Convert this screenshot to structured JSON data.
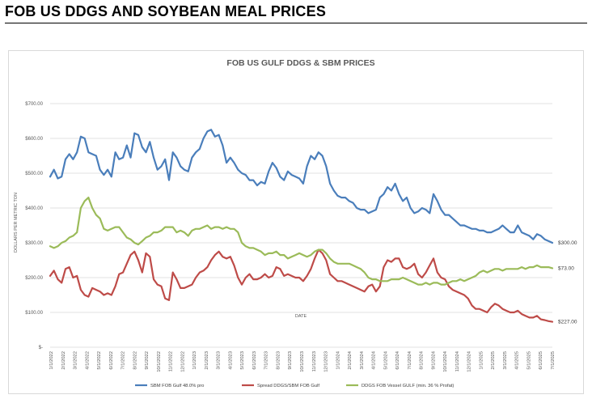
{
  "header": {
    "title": "FOB US DDGS AND SOYBEAN MEAL PRICES"
  },
  "chart_data": {
    "type": "line",
    "title": "FOB US GULF DDGS & SBM PRICES",
    "xlabel": "DATE",
    "ylabel": "DOLLARS PER METRIC TON",
    "ylim": [
      0,
      700
    ],
    "y_ticks": [
      "$-",
      "$100.00",
      "$200.00",
      "$300.00",
      "$400.00",
      "$500.00",
      "$600.00",
      "$700.00"
    ],
    "x_ticks": [
      "1/1/2022",
      "2/1/2022",
      "3/1/2022",
      "4/1/2022",
      "5/1/2022",
      "6/1/2022",
      "7/1/2022",
      "8/1/2022",
      "9/1/2022",
      "10/1/2022",
      "11/1/2022",
      "12/1/2022",
      "1/1/2023",
      "2/1/2023",
      "3/1/2023",
      "4/1/2023",
      "5/1/2023",
      "6/1/2023",
      "7/1/2023",
      "8/1/2023",
      "9/1/2023",
      "10/1/2023",
      "11/1/2023",
      "12/1/2023",
      "1/1/2024",
      "2/1/2024",
      "3/1/2024",
      "4/1/2024",
      "5/1/2024",
      "6/1/2024",
      "7/1/2024",
      "8/1/2024",
      "9/1/2024",
      "10/1/2024",
      "11/1/2024",
      "12/1/2024",
      "1/1/2025",
      "2/1/2025",
      "3/1/2025",
      "4/1/2025",
      "5/1/2025",
      "6/1/2025",
      "7/1/2025"
    ],
    "grid": true,
    "legend_position": "bottom",
    "end_labels": [
      "$300.00",
      "$227.00",
      "$73.00"
    ],
    "series": [
      {
        "name": "SBM FOB Gulf 48.0% pro",
        "color": "#4a7ebb",
        "values": [
          490,
          510,
          485,
          490,
          540,
          555,
          540,
          560,
          605,
          600,
          560,
          555,
          550,
          510,
          495,
          510,
          490,
          560,
          540,
          545,
          580,
          545,
          615,
          610,
          575,
          560,
          590,
          545,
          510,
          520,
          540,
          480,
          560,
          545,
          520,
          510,
          505,
          545,
          560,
          570,
          600,
          620,
          625,
          605,
          610,
          580,
          530,
          545,
          530,
          510,
          500,
          495,
          480,
          480,
          465,
          475,
          470,
          505,
          530,
          515,
          490,
          480,
          505,
          495,
          490,
          485,
          470,
          520,
          550,
          540,
          560,
          550,
          520,
          470,
          450,
          435,
          430,
          430,
          420,
          415,
          400,
          395,
          395,
          385,
          390,
          395,
          430,
          440,
          460,
          450,
          470,
          440,
          420,
          430,
          400,
          385,
          390,
          400,
          395,
          385,
          440,
          420,
          395,
          380,
          380,
          370,
          360,
          350,
          350,
          345,
          340,
          340,
          335,
          335,
          330,
          330,
          335,
          340,
          350,
          340,
          330,
          330,
          350,
          330,
          325,
          320,
          310,
          325,
          320,
          310,
          305,
          300
        ]
      },
      {
        "name": "Spread DDGS/SBM FOB Gulf",
        "color": "#be4b48",
        "values": [
          205,
          220,
          195,
          185,
          225,
          230,
          200,
          205,
          165,
          150,
          145,
          170,
          165,
          160,
          150,
          155,
          150,
          175,
          210,
          215,
          240,
          265,
          275,
          250,
          215,
          270,
          260,
          195,
          180,
          175,
          140,
          135,
          215,
          195,
          170,
          170,
          175,
          180,
          200,
          215,
          220,
          230,
          250,
          265,
          275,
          260,
          255,
          260,
          235,
          200,
          180,
          200,
          210,
          195,
          195,
          200,
          210,
          200,
          205,
          230,
          225,
          205,
          210,
          205,
          200,
          200,
          190,
          205,
          225,
          255,
          280,
          270,
          250,
          210,
          200,
          190,
          190,
          185,
          180,
          175,
          170,
          165,
          160,
          175,
          180,
          160,
          175,
          230,
          250,
          245,
          255,
          255,
          230,
          225,
          230,
          240,
          210,
          200,
          215,
          235,
          255,
          215,
          200,
          195,
          175,
          165,
          160,
          155,
          150,
          140,
          120,
          110,
          110,
          105,
          100,
          115,
          125,
          120,
          110,
          105,
          100,
          100,
          105,
          95,
          90,
          85,
          85,
          90,
          80,
          78,
          75,
          73
        ]
      },
      {
        "name": "DDGS FOB Vessel GULF  (min. 36 % Profat)",
        "color": "#9bbb59",
        "values": [
          290,
          285,
          290,
          300,
          305,
          315,
          320,
          330,
          400,
          420,
          430,
          400,
          380,
          370,
          340,
          335,
          340,
          345,
          345,
          330,
          315,
          310,
          300,
          295,
          305,
          315,
          320,
          330,
          330,
          335,
          345,
          345,
          345,
          330,
          335,
          330,
          320,
          335,
          340,
          340,
          345,
          350,
          340,
          345,
          345,
          340,
          345,
          340,
          340,
          330,
          300,
          290,
          285,
          285,
          280,
          275,
          265,
          270,
          270,
          275,
          265,
          265,
          255,
          260,
          265,
          270,
          265,
          260,
          265,
          275,
          280,
          280,
          270,
          255,
          245,
          240,
          240,
          240,
          240,
          235,
          230,
          225,
          215,
          200,
          195,
          195,
          190,
          190,
          190,
          195,
          195,
          195,
          200,
          195,
          190,
          185,
          180,
          180,
          185,
          180,
          185,
          185,
          180,
          180,
          185,
          190,
          190,
          195,
          190,
          195,
          200,
          205,
          215,
          220,
          215,
          220,
          225,
          225,
          220,
          225,
          225,
          225,
          225,
          230,
          225,
          230,
          230,
          235,
          230,
          230,
          230,
          227
        ]
      }
    ]
  }
}
